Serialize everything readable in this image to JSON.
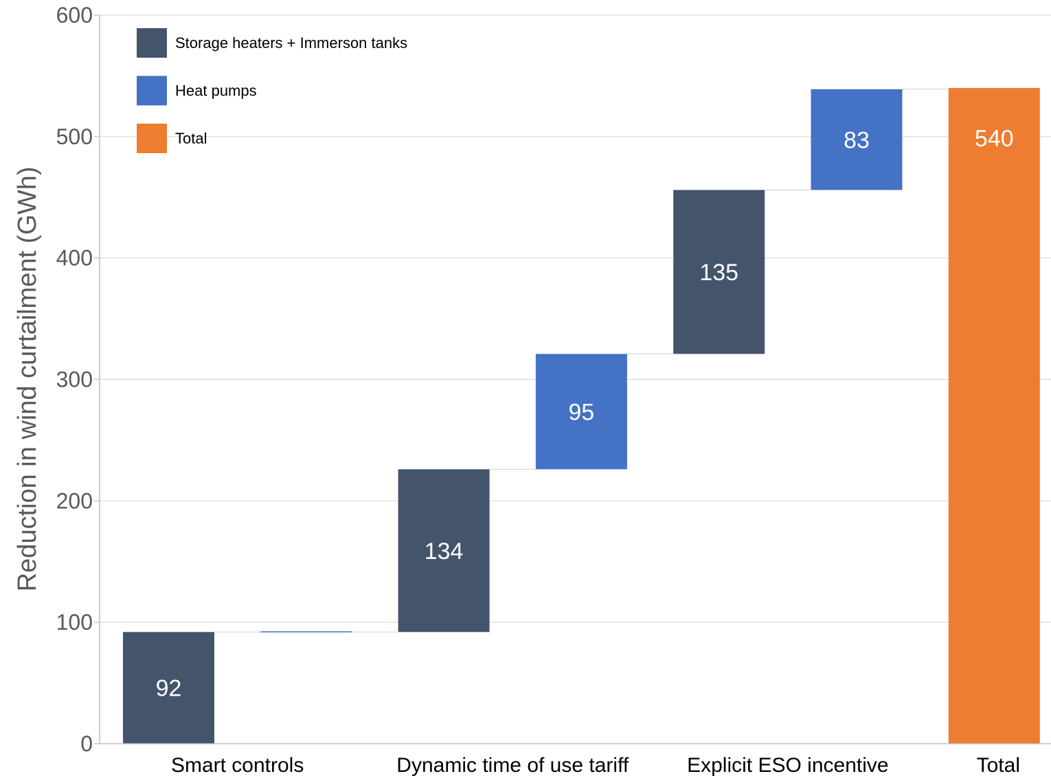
{
  "chart_data": {
    "type": "bar",
    "subtype": "waterfall",
    "ylabel": "Reduction in wind curtailment (GWh)",
    "ylim": [
      0,
      600
    ],
    "yticks": [
      0,
      100,
      200,
      300,
      400,
      500,
      600
    ],
    "grid": true,
    "legend_position": "top-left",
    "category_labels": [
      "Smart controls",
      "Dynamic time of use tariff",
      "Explicit  ESO incentive",
      "Total"
    ],
    "legend": [
      {
        "name": "Storage heaters + Immerson tanks",
        "color": "#44546a"
      },
      {
        "name": "Heat pumps",
        "color": "#4472c4"
      },
      {
        "name": "Total",
        "color": "#ed7d31"
      }
    ],
    "bars": [
      {
        "group": "Smart controls",
        "series": "Storage heaters + Immerson tanks",
        "base": 0,
        "value": 92,
        "label": "92"
      },
      {
        "group": "Smart controls",
        "series": "Heat pumps",
        "base": 92,
        "value": 0,
        "label": ""
      },
      {
        "group": "Dynamic time of use tariff",
        "series": "Storage heaters + Immerson tanks",
        "base": 92,
        "value": 134,
        "label": "134"
      },
      {
        "group": "Dynamic time of use tariff",
        "series": "Heat pumps",
        "base": 226,
        "value": 95,
        "label": "95"
      },
      {
        "group": "Explicit  ESO incentive",
        "series": "Storage heaters + Immerson tanks",
        "base": 321,
        "value": 135,
        "label": "135"
      },
      {
        "group": "Explicit  ESO incentive",
        "series": "Heat pumps",
        "base": 456,
        "value": 83,
        "label": "83"
      },
      {
        "group": "Total",
        "series": "Total",
        "base": 0,
        "value": 540,
        "label": "540"
      }
    ]
  }
}
